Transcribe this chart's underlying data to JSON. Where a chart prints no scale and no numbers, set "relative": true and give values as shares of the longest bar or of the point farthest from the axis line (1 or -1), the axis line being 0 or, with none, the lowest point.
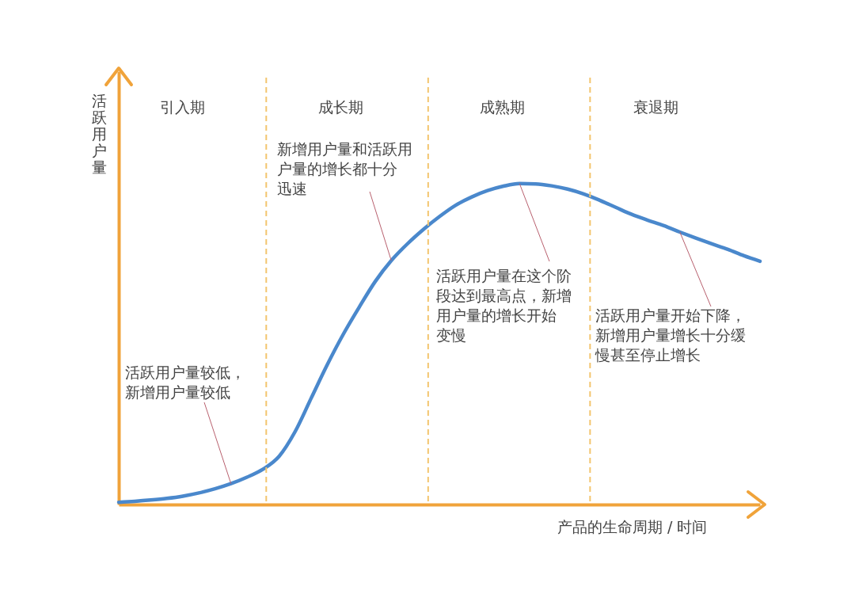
{
  "chart_data": {
    "type": "line",
    "relative": true,
    "categories": [
      null,
      null,
      null,
      null,
      null,
      null,
      null,
      null,
      null,
      null,
      null,
      null,
      null,
      null,
      null,
      null,
      null,
      null,
      null,
      null,
      null,
      null,
      null,
      null,
      null,
      null,
      null,
      null,
      null,
      null,
      null,
      null,
      null,
      null,
      null,
      null,
      null,
      null,
      null,
      null,
      null
    ],
    "series": [
      {
        "color": "#4a88cc",
        "values": [
          0.007,
          0.01,
          0.014,
          0.019,
          0.026,
          0.036,
          0.049,
          0.065,
          0.085,
          0.11,
          0.15,
          0.227,
          0.331,
          0.435,
          0.53,
          0.615,
          0.695,
          0.76,
          0.812,
          0.857,
          0.897,
          0.932,
          0.958,
          0.978,
          0.992,
          1,
          0.999,
          0.993,
          0.983,
          0.968,
          0.948,
          0.926,
          0.904,
          0.886,
          0.869,
          0.849,
          0.83,
          0.812,
          0.795,
          0.775,
          0.758
        ]
      }
    ],
    "xlabel": "产品的生命周期 / 时间",
    "ylabel": "活跃用户量",
    "annotations": [
      "引入期",
      "成长期",
      "成熟期",
      "衰退期",
      "活跃用户量较低，新增用户量较低",
      "新增用户量和活跃用户量的增长都十分迅速",
      "活跃用户量在这个阶段达到最高点，新增用户量的增长开始变慢",
      "活跃用户量开始下降，新增用户量增长十分缓慢甚至停止增长"
    ],
    "grid": false,
    "legend": false,
    "marker": "none",
    "line_style": "solid",
    "tick_labels": false
  }
}
